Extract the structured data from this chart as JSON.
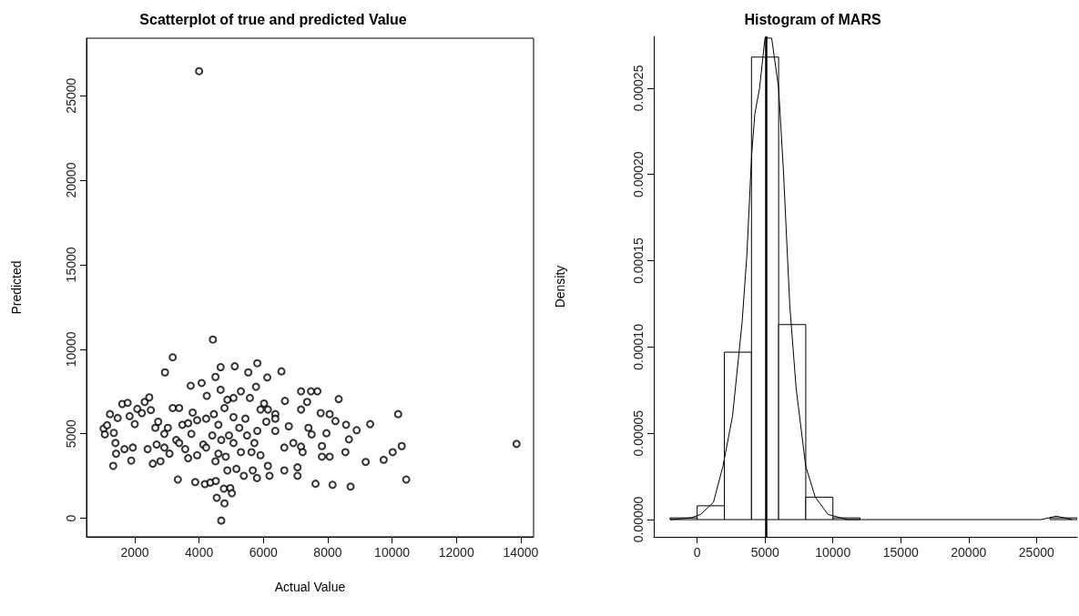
{
  "chart_data": [
    {
      "type": "scatter",
      "title": "Scatterplot of true and predicted Value",
      "xlabel": "Actual Value",
      "ylabel": "Predicted",
      "color": "#000000",
      "marker": "circle",
      "grid": false,
      "x": [
        4000,
        13870,
        4430,
        3180,
        2940,
        4690,
        4550,
        4790,
        10440,
        10190,
        10300,
        10020,
        9740,
        9180,
        9320,
        8710,
        8150,
        7620,
        8900,
        8570,
        8660,
        8550,
        8340,
        7680,
        7480,
        7170,
        6560,
        5810,
        5110,
        4670,
        5530,
        6120,
        8060,
        7780,
        8240,
        7960,
        7820,
        8060,
        7820,
        7060,
        7060,
        6650,
        7170,
        7220,
        7400,
        7500,
        7170,
        7360,
        6670,
        1030,
        1070,
        1140,
        1230,
        1330,
        1400,
        1420,
        1350,
        1470,
        1610,
        1780,
        1680,
        1890,
        1940,
        1840,
        2080,
        2000,
        2220,
        2310,
        2450,
        2500,
        2400,
        2560,
        2680,
        2800,
        2920,
        3030,
        3080,
        3340,
        3180,
        3380,
        3570,
        3740,
        3880,
        4080,
        4180,
        4350,
        4520,
        4240,
        4510,
        4670,
        4830,
        4970,
        5020,
        4770,
        4880,
        5160,
        5390,
        5800,
        6190,
        6140,
        5670,
        5910,
        5720,
        5440,
        5300,
        5070,
        4880,
        5580,
        5770,
        6020,
        6370,
        6790,
        6930,
        6650,
        6370,
        6090,
        3940,
        4130,
        4410,
        4600,
        4220,
        3800,
        3480,
        3290,
        3760,
        3940,
        4690,
        5070,
        5250,
        5490,
        5630,
        5810,
        5910,
        5070,
        5300,
        4510,
        4220,
        3660,
        3380,
        2920,
        2640,
        2730,
        3660,
        4460,
        4790,
        6140,
        6370,
        4600,
        4930
      ],
      "values": [
        26450,
        4400,
        10570,
        9520,
        8630,
        -140,
        1210,
        880,
        2290,
        6160,
        4270,
        3910,
        3460,
        3330,
        5570,
        1870,
        1980,
        2040,
        5210,
        5530,
        4670,
        3910,
        7050,
        7510,
        7510,
        7510,
        8690,
        9170,
        8990,
        8940,
        8630,
        8330,
        6160,
        6220,
        5750,
        5030,
        4270,
        3640,
        3640,
        2510,
        3010,
        2830,
        4240,
        3910,
        5350,
        4960,
        6430,
        6880,
        6940,
        5300,
        4960,
        5500,
        6160,
        3100,
        4450,
        3820,
        5050,
        5930,
        6760,
        6830,
        4090,
        3410,
        4180,
        6040,
        6470,
        5570,
        6220,
        6880,
        7150,
        6400,
        4090,
        3230,
        4360,
        3370,
        4180,
        5350,
        3820,
        2290,
        6520,
        6520,
        4090,
        7840,
        2140,
        8000,
        2020,
        2110,
        2200,
        7240,
        8360,
        7600,
        3640,
        1780,
        1480,
        1750,
        2830,
        2920,
        2510,
        2380,
        2510,
        3100,
        2830,
        3730,
        4450,
        5890,
        7510,
        7120,
        7010,
        7120,
        7780,
        6790,
        6160,
        5440,
        4450,
        4180,
        5170,
        5710,
        3730,
        4360,
        4900,
        5530,
        5890,
        6250,
        5530,
        4630,
        4990,
        5800,
        4630,
        4450,
        5350,
        4900,
        3910,
        5170,
        6430,
        5980,
        3910,
        3370,
        4180,
        3550,
        4450,
        4990,
        5350,
        5710,
        5620,
        6160,
        6520,
        6430,
        5890,
        3820,
        4900
      ],
      "xlim": [
        500,
        14400
      ],
      "xticks": [
        2000,
        4000,
        6000,
        8000,
        10000,
        12000,
        14000
      ],
      "ylim": [
        -1100,
        28400
      ],
      "yticks": [
        0,
        5000,
        10000,
        15000,
        20000,
        25000
      ]
    },
    {
      "type": "histogram",
      "title": "Histogram of MARS",
      "ylabel": "Density",
      "color": "#ffffff",
      "grid": false,
      "bins": [
        -2000,
        0,
        2000,
        4000,
        6000,
        8000,
        10000,
        12000,
        14000,
        16000,
        18000,
        20000,
        22000,
        24000,
        26000,
        28000
      ],
      "values": [
        1e-06,
        8e-06,
        9.7e-05,
        0.000268,
        0.000113,
        1.3e-05,
        1e-06,
        0,
        0,
        0,
        0,
        0,
        0,
        0,
        1e-06
      ],
      "series": [
        {
          "type": "line",
          "color": "#000000",
          "marker": "none",
          "x": [
            -1970,
            -445,
            258,
            1196,
            1899,
            2603,
            3306,
            3658,
            4010,
            4244,
            4596,
            4994,
            5487,
            6002,
            6354,
            6823,
            7292,
            7995,
            8699,
            9637,
            11044,
            12216,
            25346,
            26471,
            27597
          ],
          "values": [
            0,
            1e-06,
            3e-06,
            1e-05,
            3.1e-05,
            6e-05,
            0.000114,
            0.000153,
            0.000211,
            0.000235,
            0.00025,
            0.000279,
            0.000279,
            0.00025,
            0.000202,
            0.000124,
            7.6e-05,
            3.1e-05,
            1.3e-05,
            3e-06,
            0,
            0,
            0,
            2e-06,
            0
          ]
        }
      ],
      "ref_lines": [
        {
          "axis": "x",
          "value": 5100,
          "color": "#000000"
        }
      ],
      "xlim": [
        -3200,
        28000
      ],
      "xticks": [
        0,
        5000,
        10000,
        15000,
        20000,
        25000
      ],
      "ylim": [
        -1e-05,
        0.00028
      ],
      "yticks": [
        {
          "value": 0,
          "label": "0.00000"
        },
        {
          "value": 5e-05,
          "label": "0.00005"
        },
        {
          "value": 0.0001,
          "label": "0.00010"
        },
        {
          "value": 0.00015,
          "label": "0.00015"
        },
        {
          "value": 0.0002,
          "label": "0.00020"
        },
        {
          "value": 0.00025,
          "label": "0.00025"
        }
      ]
    }
  ]
}
